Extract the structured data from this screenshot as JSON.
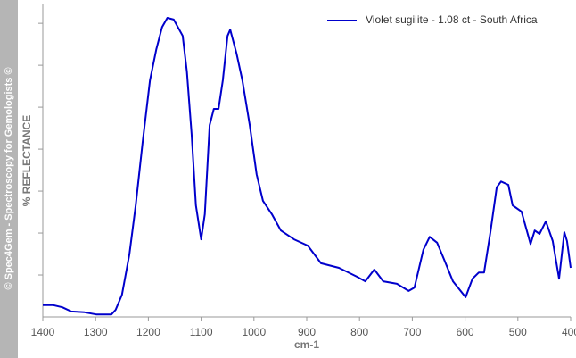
{
  "chart_data": {
    "type": "line",
    "side_note": "© Spec4Gem - Spectroscopy for Gemologists ©",
    "ylabel": "% REFLECTANCE",
    "xlabel": "cm-1",
    "xlim": [
      1400,
      400
    ],
    "xticks": [
      1400,
      1300,
      1200,
      1100,
      1000,
      900,
      800,
      700,
      600,
      500,
      400
    ],
    "ylim": [
      0,
      7.45
    ],
    "yticks": [
      1,
      2,
      3,
      4,
      5,
      6,
      7
    ],
    "legend": "top-right",
    "x": [
      1400,
      1380,
      1363,
      1346,
      1321,
      1299,
      1270,
      1262,
      1250,
      1236,
      1224,
      1211,
      1197,
      1185,
      1174,
      1164,
      1152,
      1135,
      1127,
      1118,
      1110,
      1100,
      1093,
      1084,
      1076,
      1067,
      1059,
      1050,
      1045,
      1033,
      1022,
      1008,
      995,
      983,
      966,
      949,
      924,
      898,
      873,
      839,
      805,
      789,
      772,
      755,
      729,
      707,
      696,
      679,
      667,
      653,
      640,
      623,
      599,
      586,
      574,
      564,
      552,
      540,
      532,
      518,
      510,
      493,
      476,
      468,
      459,
      447,
      434,
      422,
      412,
      407,
      400
    ],
    "series": [
      {
        "name": "Violet sugilite - 1.08 ct - South Africa",
        "color": "#0000cc",
        "values": [
          0.28,
          0.28,
          0.23,
          0.13,
          0.11,
          0.06,
          0.06,
          0.17,
          0.53,
          1.49,
          2.66,
          4.15,
          5.64,
          6.38,
          6.91,
          7.13,
          7.09,
          6.7,
          5.85,
          4.36,
          2.66,
          1.85,
          2.45,
          4.57,
          4.96,
          4.96,
          5.64,
          6.7,
          6.85,
          6.28,
          5.64,
          4.57,
          3.4,
          2.77,
          2.45,
          2.06,
          1.85,
          1.7,
          1.28,
          1.17,
          0.96,
          0.85,
          1.13,
          0.85,
          0.79,
          0.62,
          0.7,
          1.6,
          1.91,
          1.77,
          1.38,
          0.85,
          0.47,
          0.91,
          1.06,
          1.06,
          2.02,
          3.09,
          3.23,
          3.15,
          2.66,
          2.51,
          1.74,
          2.06,
          1.98,
          2.28,
          1.81,
          0.91,
          2.02,
          1.81,
          1.17
        ]
      }
    ]
  }
}
